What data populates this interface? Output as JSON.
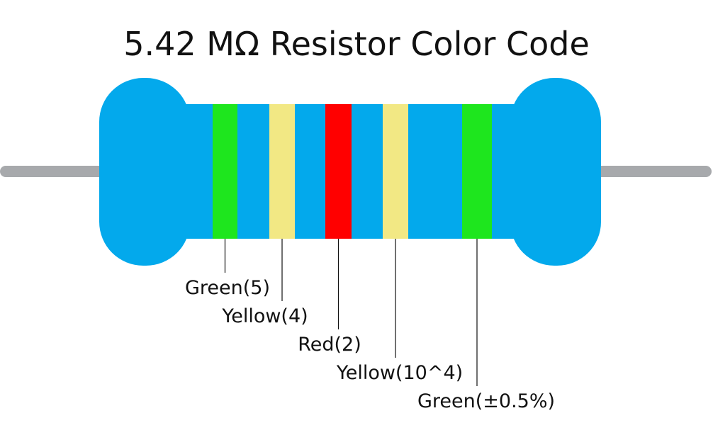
{
  "title": "5.42 MΩ Resistor Color Code",
  "bands": [
    {
      "label": "Green(5)",
      "color": "#1ee61e"
    },
    {
      "label": "Yellow(4)",
      "color": "#f2e884"
    },
    {
      "label": "Red(2)",
      "color": "#ff0000"
    },
    {
      "label": "Yellow(10^4)",
      "color": "#f2e884"
    },
    {
      "label": "Green(±0.5%)",
      "color": "#1ee61e"
    }
  ]
}
